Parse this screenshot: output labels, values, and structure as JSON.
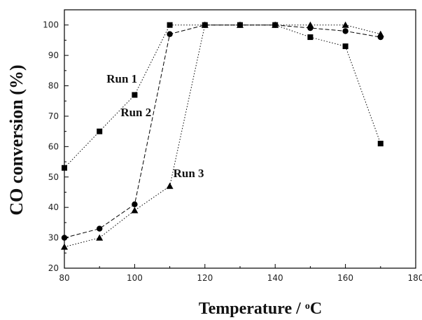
{
  "chart_data": {
    "type": "line",
    "xlabel": "Temperature / ",
    "xlabel_sup": "o",
    "xlabel_unit": "C",
    "ylabel": "CO conversion (%)",
    "xlim": [
      80,
      180
    ],
    "ylim": [
      20,
      105
    ],
    "xticks": [
      80,
      100,
      120,
      140,
      160,
      180
    ],
    "xtick_labels": [
      "80",
      "100",
      "120",
      "140",
      "160",
      "180"
    ],
    "yticks": [
      20,
      30,
      40,
      50,
      60,
      70,
      80,
      90,
      100
    ],
    "ytick_labels": [
      "20",
      "30",
      "40",
      "50",
      "60",
      "70",
      "80",
      "90",
      "100"
    ],
    "grid": false,
    "legend": "inline labels",
    "series": [
      {
        "name": "Run 1",
        "marker": "square",
        "line_style": "dotted",
        "label_at": [
          92,
          81
        ],
        "x": [
          80,
          90,
          100,
          110,
          120,
          130,
          140,
          150,
          160,
          170
        ],
        "y": [
          53,
          65,
          77,
          100,
          100,
          100,
          100,
          96,
          93,
          61
        ]
      },
      {
        "name": "Run 2",
        "marker": "circle",
        "line_style": "dashed",
        "label_at": [
          96,
          70
        ],
        "x": [
          80,
          90,
          100,
          110,
          120,
          130,
          140,
          150,
          160,
          170
        ],
        "y": [
          30,
          33,
          41,
          97,
          100,
          100,
          100,
          99,
          98,
          96
        ]
      },
      {
        "name": "Run 3",
        "marker": "triangle",
        "line_style": "dotted",
        "label_at": [
          111,
          50
        ],
        "x": [
          80,
          90,
          100,
          110,
          120,
          130,
          140,
          150,
          160,
          170
        ],
        "y": [
          27,
          30,
          39,
          47,
          100,
          100,
          100,
          100,
          100,
          97
        ]
      }
    ]
  }
}
